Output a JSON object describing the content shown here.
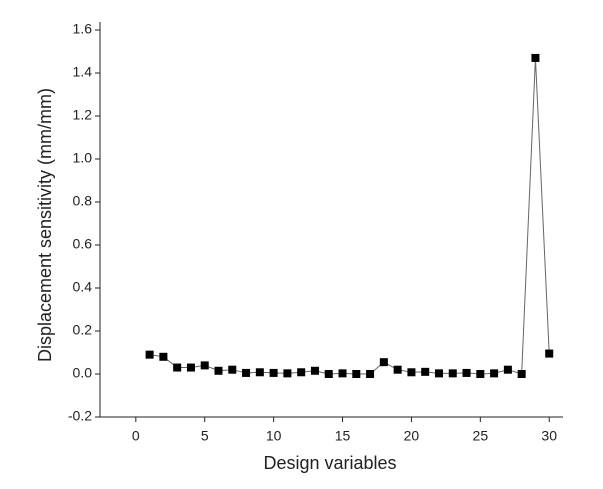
{
  "chart_data": {
    "type": "line",
    "x_label": "Design variables",
    "y_label": "Displacement sensitivity (mm/mm)",
    "x": [
      1,
      2,
      3,
      4,
      5,
      6,
      7,
      8,
      9,
      10,
      11,
      12,
      13,
      14,
      15,
      16,
      17,
      18,
      19,
      20,
      21,
      22,
      23,
      24,
      25,
      26,
      27,
      28,
      29,
      30
    ],
    "series": [
      {
        "name": "Displacement sensitivity",
        "color": "#000000",
        "values": [
          0.09,
          0.08,
          0.03,
          0.03,
          0.04,
          0.015,
          0.02,
          0.005,
          0.008,
          0.005,
          0.003,
          0.008,
          0.015,
          0.0,
          0.003,
          0.0,
          0.0,
          0.055,
          0.02,
          0.008,
          0.01,
          0.003,
          0.003,
          0.005,
          0.0,
          0.003,
          0.02,
          0.0,
          1.47,
          0.095
        ]
      }
    ],
    "line_color": "#666666",
    "xlim": [
      -2.6,
      31
    ],
    "xticks": [
      0,
      5,
      10,
      15,
      20,
      25,
      30
    ],
    "ylim": [
      -0.2,
      1.6
    ],
    "yticks": [
      {
        "value": -0.2,
        "label": "-0.2"
      },
      {
        "value": 0,
        "label": "0.0"
      },
      {
        "value": 0.2,
        "label": "0.2"
      },
      {
        "value": 0.4,
        "label": "0.4"
      },
      {
        "value": 0.6,
        "label": "0.6"
      },
      {
        "value": 0.8,
        "label": "0.8"
      },
      {
        "value": 1.0,
        "label": "1.0"
      },
      {
        "value": 1.2,
        "label": "1.2"
      },
      {
        "value": 1.4,
        "label": "1.4"
      },
      {
        "value": 1.6,
        "label": "1.6"
      }
    ]
  }
}
